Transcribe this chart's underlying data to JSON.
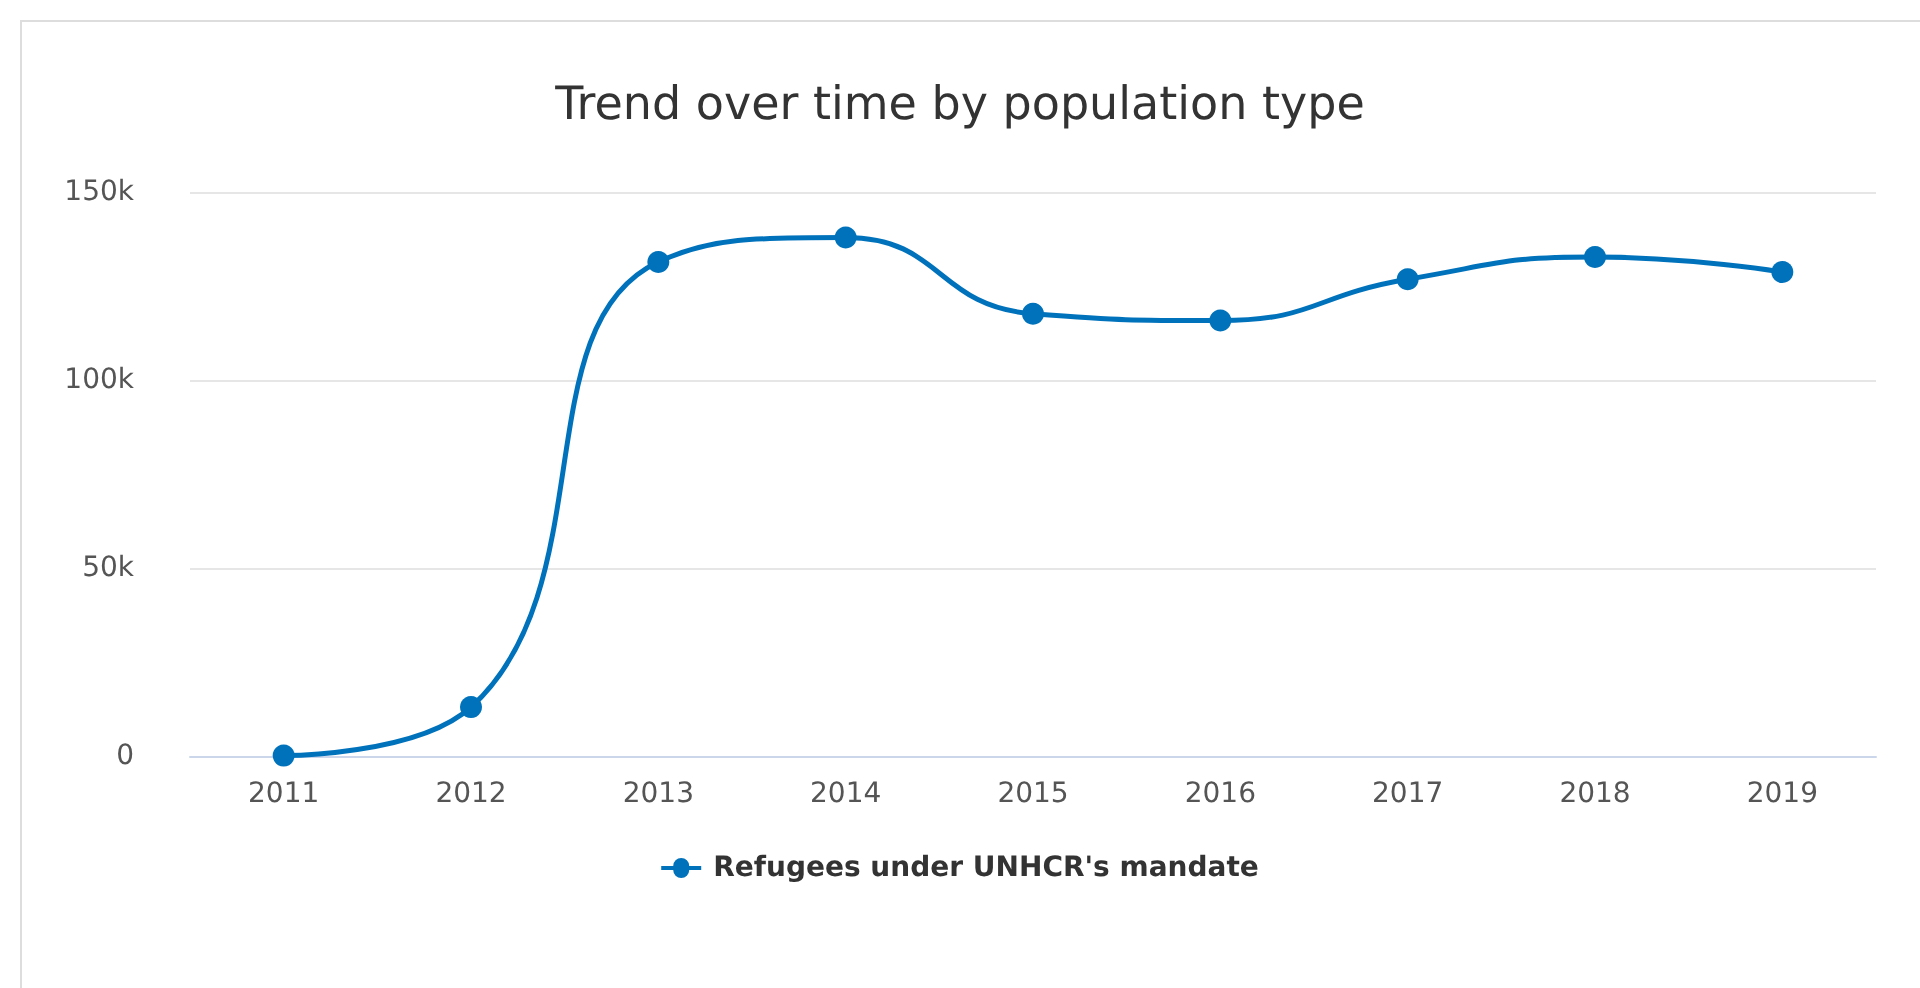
{
  "chart_data": {
    "type": "line",
    "title": "Trend over time by population type",
    "categories": [
      "2011",
      "2012",
      "2013",
      "2014",
      "2015",
      "2016",
      "2017",
      "2018",
      "2019"
    ],
    "series": [
      {
        "name": "Refugees under UNHCR's mandate",
        "color": "#0072bc",
        "values": [
          100,
          13000,
          131400,
          137900,
          117600,
          115800,
          126800,
          132700,
          128700
        ]
      }
    ],
    "ylim": [
      0,
      150000
    ],
    "yticks": [
      {
        "value": 0,
        "label": "0"
      },
      {
        "value": 50000,
        "label": "50k"
      },
      {
        "value": 100000,
        "label": "100k"
      },
      {
        "value": 150000,
        "label": "150k"
      }
    ],
    "grid": "y",
    "legend": "bottom",
    "marker": "circle",
    "line_style": "solid"
  }
}
